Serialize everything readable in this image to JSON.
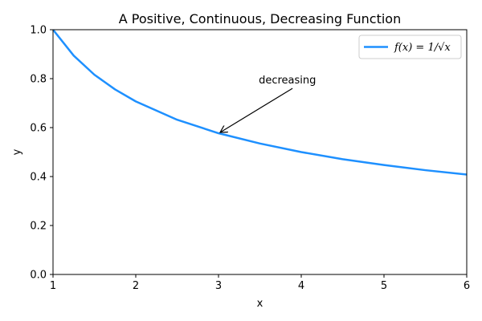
{
  "chart_data": {
    "type": "line",
    "title": "A Positive, Continuous, Decreasing Function",
    "xlabel": "x",
    "ylabel": "y",
    "xlim": [
      1,
      6
    ],
    "ylim": [
      0,
      1.0
    ],
    "x_ticks": [
      1,
      2,
      3,
      4,
      5,
      6
    ],
    "y_ticks": [
      0.0,
      0.2,
      0.4,
      0.6,
      0.8,
      1.0
    ],
    "x_tick_labels": [
      "1",
      "2",
      "3",
      "4",
      "5",
      "6"
    ],
    "y_tick_labels": [
      "0.0",
      "0.2",
      "0.4",
      "0.6",
      "0.8",
      "1.0"
    ],
    "grid": false,
    "legend_position": "top-right",
    "series": [
      {
        "name": "f(x) = 1/√x",
        "color": "#1e90ff",
        "x": [
          1.0,
          1.25,
          1.5,
          1.75,
          2.0,
          2.5,
          3.0,
          3.5,
          4.0,
          4.5,
          5.0,
          5.5,
          6.0
        ],
        "values": [
          1.0,
          0.894,
          0.816,
          0.756,
          0.707,
          0.632,
          0.577,
          0.535,
          0.5,
          0.471,
          0.447,
          0.426,
          0.408
        ]
      }
    ],
    "annotations": [
      {
        "text": "decreasing",
        "text_xy": [
          3.7,
          0.78
        ],
        "arrow_to": [
          3.0,
          0.577
        ]
      }
    ]
  }
}
